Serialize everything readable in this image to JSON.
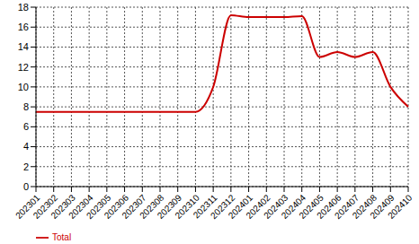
{
  "chart_data": {
    "type": "line",
    "categories": [
      "202301",
      "202302",
      "202303",
      "202304",
      "202305",
      "202306",
      "202307",
      "202308",
      "202309",
      "202310",
      "202311",
      "202312",
      "202401",
      "202402",
      "202403",
      "202404",
      "202405",
      "202406",
      "202407",
      "202408",
      "202409",
      "202410"
    ],
    "series": [
      {
        "name": "Total",
        "color": "#cc0000",
        "values": [
          7.5,
          7.5,
          7.5,
          7.5,
          7.5,
          7.5,
          7.5,
          7.5,
          7.5,
          7.5,
          10,
          17.2,
          17,
          17,
          17,
          17.1,
          13,
          13.5,
          13,
          13.5,
          10,
          8
        ]
      }
    ],
    "ylim": [
      0,
      18
    ],
    "yticks": [
      0,
      2,
      4,
      6,
      8,
      10,
      12,
      14,
      16,
      18
    ],
    "grid": true,
    "legend": "bottom left"
  }
}
